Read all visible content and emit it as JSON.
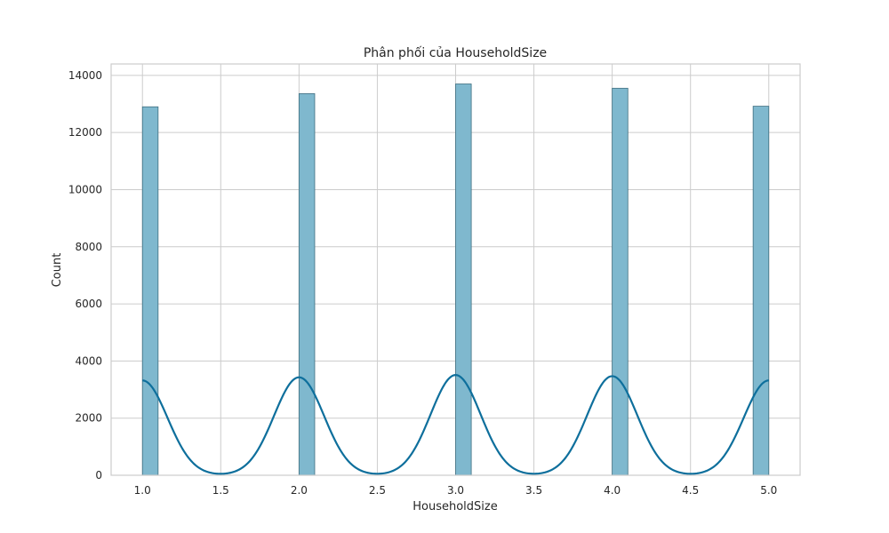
{
  "chart_data": {
    "type": "bar",
    "title": "Phân phối của HouseholdSize",
    "xlabel": "HouseholdSize",
    "ylabel": "Count",
    "xlim": [
      0.8,
      5.2
    ],
    "ylim": [
      0,
      14400
    ],
    "xticks": [
      1.0,
      1.5,
      2.0,
      2.5,
      3.0,
      3.5,
      4.0,
      4.5,
      5.0
    ],
    "xtick_labels": [
      "1.0",
      "1.5",
      "2.0",
      "2.5",
      "3.0",
      "3.5",
      "4.0",
      "4.5",
      "5.0"
    ],
    "yticks": [
      0,
      2000,
      4000,
      6000,
      8000,
      10000,
      12000,
      14000
    ],
    "ytick_labels": [
      "0",
      "2000",
      "4000",
      "6000",
      "8000",
      "10000",
      "12000",
      "14000"
    ],
    "grid": true,
    "bins": [
      {
        "x0": 1.0,
        "x1": 1.1,
        "count": 12900
      },
      {
        "x0": 1.9,
        "x1": 2.0,
        "count": 13360
      },
      {
        "x0": 2.0,
        "x1": 2.1,
        "count": 0
      },
      {
        "x0": 2.9,
        "x1": 3.0,
        "count": 13700
      },
      {
        "x0": 3.9,
        "x1": 4.0,
        "count": 13550
      },
      {
        "x0": 4.9,
        "x1": 5.0,
        "count": 12920
      }
    ],
    "series": [
      {
        "type": "histogram",
        "values": [
          12900,
          13360,
          13700,
          13550,
          12920
        ],
        "x": [
          1.0,
          2.0,
          3.0,
          4.0,
          5.0
        ]
      },
      {
        "type": "kde",
        "peaks_x": [
          1.0,
          2.0,
          3.0,
          4.0,
          5.0
        ],
        "peaks_y": [
          3320,
          3430,
          3510,
          3470,
          3320
        ],
        "x_range": [
          1.0,
          5.0
        ]
      }
    ],
    "colors": {
      "bar_fill": "#7fb8ce",
      "bar_stroke": "#3f6e80",
      "kde_line": "#0e6f9c",
      "grid": "#cccccc",
      "frame": "#cccccc"
    }
  }
}
